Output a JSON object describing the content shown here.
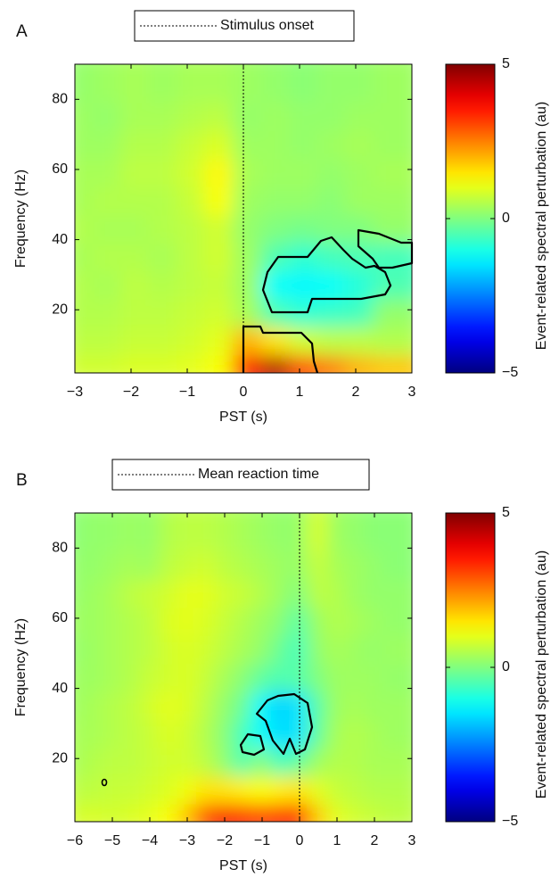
{
  "chart_data": [
    {
      "type": "heatmap",
      "panel_label": "A",
      "vline": {
        "name": "Stimulus onset",
        "x": 0
      },
      "x_label": "PST (s)",
      "y_label": "Frequency (Hz)",
      "xlim": [
        -3,
        3
      ],
      "xticks": [
        {
          "value": -3,
          "label": "−3"
        },
        {
          "value": -2,
          "label": "−2"
        },
        {
          "value": -1,
          "label": "−1"
        },
        0,
        1,
        2,
        3
      ],
      "ylim": [
        2,
        90
      ],
      "yticks": [
        20,
        40,
        60,
        80
      ],
      "x": [
        -2.75,
        -2.25,
        -1.75,
        -1.25,
        -0.75,
        -0.25,
        0.25,
        0.75,
        1.25,
        1.75,
        2.25,
        2.75
      ],
      "y": [
        6,
        14,
        22,
        30,
        38,
        46,
        54,
        62,
        70,
        78,
        86
      ],
      "z": [
        [
          0.8,
          0.8,
          0.9,
          0.9,
          1,
          1.2,
          3.5,
          4.5,
          3,
          2.5,
          2,
          1.8
        ],
        [
          0.6,
          0.6,
          0.7,
          0.7,
          0.8,
          1,
          2,
          1.5,
          0.8,
          0.6,
          0.6,
          0.5
        ],
        [
          0.5,
          0.5,
          0.6,
          0.6,
          0.7,
          0.8,
          0.4,
          -0.5,
          -0.8,
          -0.7,
          -0.6,
          0.2
        ],
        [
          0.5,
          0.4,
          0.6,
          0.5,
          0.6,
          0.7,
          0.3,
          -1.2,
          -1.3,
          -1.2,
          -0.9,
          -0.5
        ],
        [
          0.4,
          0.5,
          0.5,
          0.4,
          0.6,
          0.8,
          0.3,
          -0.5,
          -0.8,
          -0.6,
          -0.5,
          -0.6
        ],
        [
          0.5,
          0.4,
          0.4,
          0.5,
          0.6,
          0.8,
          0.2,
          0,
          -0.1,
          0,
          0,
          0.2
        ],
        [
          0.4,
          0.5,
          0.5,
          0.5,
          0.7,
          1.2,
          0.3,
          0.2,
          0.2,
          0.1,
          0.3,
          0.3
        ],
        [
          0.4,
          0.4,
          0.6,
          0.6,
          0.8,
          1.3,
          0.4,
          0.3,
          0.3,
          0.2,
          0.3,
          0.4
        ],
        [
          0.3,
          0.3,
          0.5,
          0.5,
          0.7,
          0.9,
          0.3,
          0.3,
          0.2,
          0.3,
          0.4,
          0.3
        ],
        [
          0.3,
          0.2,
          0.4,
          0.4,
          0.5,
          0.6,
          0.2,
          0.3,
          0.2,
          0.2,
          0.3,
          0.3
        ],
        [
          0.2,
          0.3,
          0.4,
          0.3,
          0.4,
          0.4,
          0.3,
          0.2,
          0.1,
          0.2,
          0.2,
          0.3
        ]
      ],
      "colormap": "jet",
      "clim": [
        -5,
        5
      ],
      "cticks": [
        {
          "value": -5,
          "label": "−5"
        },
        0,
        5
      ],
      "colorbar_label": "Event-related spectral perturbation (au)"
    },
    {
      "type": "heatmap",
      "panel_label": "B",
      "vline": {
        "name": "Mean reaction time",
        "x": 0
      },
      "x_label": "PST (s)",
      "y_label": "Frequency (Hz)",
      "xlim": [
        -6,
        3
      ],
      "xticks": [
        {
          "value": -6,
          "label": "−6"
        },
        {
          "value": -5,
          "label": "−5"
        },
        {
          "value": -4,
          "label": "−4"
        },
        {
          "value": -3,
          "label": "−3"
        },
        {
          "value": -2,
          "label": "−2"
        },
        {
          "value": -1,
          "label": "−1"
        },
        0,
        1,
        2,
        3
      ],
      "ylim": [
        2,
        90
      ],
      "yticks": [
        20,
        40,
        60,
        80
      ],
      "x": [
        -5.75,
        -5.25,
        -4.75,
        -4.25,
        -3.75,
        -3.25,
        -2.75,
        -2.25,
        -1.75,
        -1.25,
        -0.75,
        -0.25,
        0.25,
        0.75,
        1.25,
        1.75,
        2.25,
        2.75
      ],
      "y": [
        6,
        14,
        22,
        30,
        38,
        46,
        54,
        62,
        70,
        78,
        86
      ],
      "z": [
        [
          0.8,
          0.9,
          0.8,
          0.9,
          1,
          1.2,
          1.8,
          3,
          3.8,
          3.5,
          3.2,
          3.4,
          3.6,
          1.8,
          1,
          0.8,
          0.7,
          0.6
        ],
        [
          0.6,
          0.6,
          0.7,
          0.7,
          0.8,
          0.9,
          1.1,
          1.5,
          1.5,
          1.4,
          1.2,
          1.4,
          1.5,
          1,
          0.7,
          0.6,
          0.5,
          0.5
        ],
        [
          0.4,
          0.5,
          0.6,
          0.6,
          0.7,
          0.8,
          0.8,
          0.6,
          0.2,
          -0.5,
          0.1,
          -0.6,
          -0.3,
          0.3,
          0.5,
          0.5,
          0.4,
          0.4
        ],
        [
          0.4,
          0.4,
          0.5,
          0.6,
          0.7,
          0.9,
          0.8,
          0.5,
          0.1,
          -0.6,
          -1.2,
          -1.6,
          -1.5,
          -0.3,
          0.4,
          0.5,
          0.4,
          0.3
        ],
        [
          0.3,
          0.4,
          0.5,
          0.6,
          0.8,
          1,
          0.9,
          0.6,
          0.2,
          -0.2,
          -1.3,
          -1.7,
          -1.5,
          -0.4,
          0.3,
          0.4,
          0.3,
          0.3
        ],
        [
          0.3,
          0.3,
          0.4,
          0.5,
          0.7,
          0.8,
          0.9,
          0.7,
          0.4,
          0.1,
          -0.3,
          -0.5,
          -0.4,
          0,
          0.3,
          0.3,
          0.3,
          0.2
        ],
        [
          0.2,
          0.3,
          0.4,
          0.5,
          0.6,
          0.8,
          0.9,
          0.8,
          0.6,
          0.4,
          0.2,
          -0.2,
          -0.6,
          0.2,
          0.4,
          0.3,
          0.2,
          0.3
        ],
        [
          0.3,
          0.3,
          0.4,
          0.5,
          0.6,
          0.9,
          1,
          0.9,
          0.7,
          0.5,
          0.3,
          0.1,
          -0.4,
          0.3,
          0.5,
          0.4,
          0.3,
          0.2
        ],
        [
          0.2,
          0.3,
          0.4,
          0.6,
          0.7,
          0.8,
          1,
          1,
          0.8,
          0.7,
          0.5,
          0.3,
          0,
          0.6,
          0.5,
          0.3,
          0.2,
          0.2
        ],
        [
          0.2,
          0.2,
          0.3,
          0.4,
          0.3,
          0.6,
          0.7,
          0.8,
          0.6,
          0.5,
          0.4,
          0.3,
          0.2,
          0.7,
          0.4,
          0.3,
          0.2,
          0.1
        ],
        [
          0.1,
          0.2,
          0.2,
          0.3,
          0.2,
          0.5,
          0.6,
          0.6,
          0.5,
          0.4,
          0.3,
          0.2,
          0.2,
          0.9,
          0.3,
          0.2,
          0.1,
          0.1
        ]
      ],
      "colormap": "jet",
      "clim": [
        -5,
        5
      ],
      "cticks": [
        {
          "value": -5,
          "label": "−5"
        },
        0,
        5
      ],
      "colorbar_label": "Event-related spectral perturbation (au)"
    }
  ]
}
